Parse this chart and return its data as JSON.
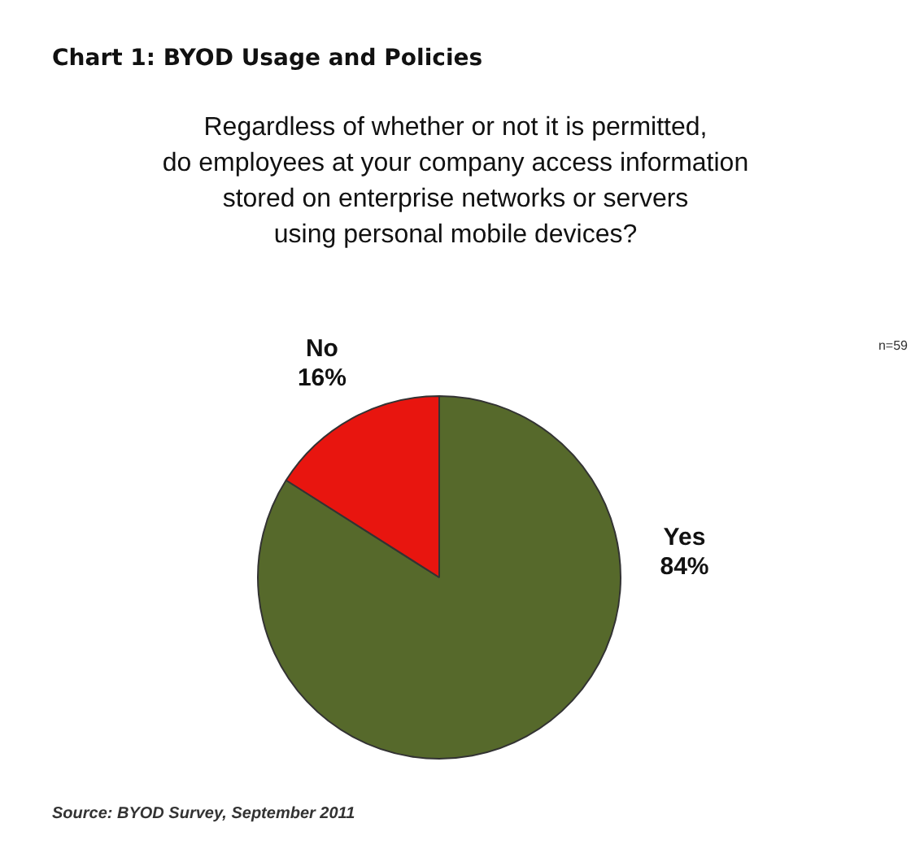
{
  "chart_data": {
    "type": "pie",
    "title": "Chart 1: BYOD Usage and Policies",
    "subtitle": "Regardless of whether or not it is permitted,\ndo employees at your company access information\nstored on enterprise networks or servers\nusing personal mobile devices?",
    "categories": [
      "Yes",
      "No"
    ],
    "values": [
      84,
      16
    ],
    "colors": [
      "#56692b",
      "#e8150f"
    ],
    "value_labels": [
      "84%",
      "16%"
    ],
    "legend": false,
    "annotations": [
      "n=59",
      "Source: BYOD Survey, September 2011"
    ]
  }
}
